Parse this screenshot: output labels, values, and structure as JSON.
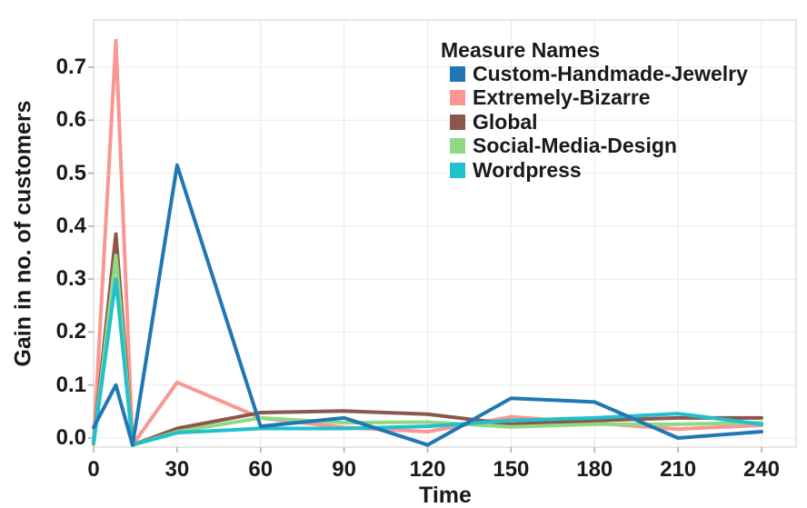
{
  "chart_data": {
    "type": "line",
    "xlabel": "Time",
    "ylabel": "Gain in no. of customers",
    "legend_title": "Measure Names",
    "legend_position": "top-right-inside",
    "grid": true,
    "x_ticks": [
      0,
      30,
      60,
      90,
      120,
      150,
      180,
      210,
      240
    ],
    "y_ticks": [
      "0.0",
      "0.1",
      "0.2",
      "0.3",
      "0.4",
      "0.5",
      "0.6",
      "0.7"
    ],
    "xlim": [
      0,
      252
    ],
    "ylim": [
      -0.017,
      0.79
    ],
    "x": [
      0,
      8,
      14,
      30,
      60,
      90,
      120,
      150,
      180,
      210,
      240
    ],
    "series": [
      {
        "name": "Custom-Handmade-Jewelry",
        "color": "#1F77B4",
        "values": [
          0.02,
          0.1,
          -0.013,
          0.515,
          0.022,
          0.038,
          -0.013,
          0.075,
          0.068,
          0.0,
          0.012
        ]
      },
      {
        "name": "Extremely-Bizarre",
        "color": "#FA9693",
        "values": [
          -0.012,
          0.75,
          -0.013,
          0.105,
          0.038,
          0.02,
          0.012,
          0.04,
          0.028,
          0.017,
          0.024
        ]
      },
      {
        "name": "Global",
        "color": "#8C564B",
        "values": [
          -0.008,
          0.385,
          -0.013,
          0.018,
          0.048,
          0.051,
          0.045,
          0.026,
          0.033,
          0.038,
          0.038
        ]
      },
      {
        "name": "Social-Media-Design",
        "color": "#8FD983",
        "values": [
          -0.01,
          0.345,
          -0.013,
          0.012,
          0.038,
          0.029,
          0.03,
          0.021,
          0.026,
          0.026,
          0.029
        ]
      },
      {
        "name": "Wordpress",
        "color": "#22BFCC",
        "values": [
          -0.01,
          0.3,
          -0.013,
          0.01,
          0.018,
          0.018,
          0.022,
          0.033,
          0.038,
          0.046,
          0.026
        ]
      }
    ],
    "style": {
      "grid_color": "#E9E9E9",
      "border_color": "#D4D4D4",
      "tick_color": "#ABABAB",
      "text_color": "#1a1a1a"
    }
  }
}
